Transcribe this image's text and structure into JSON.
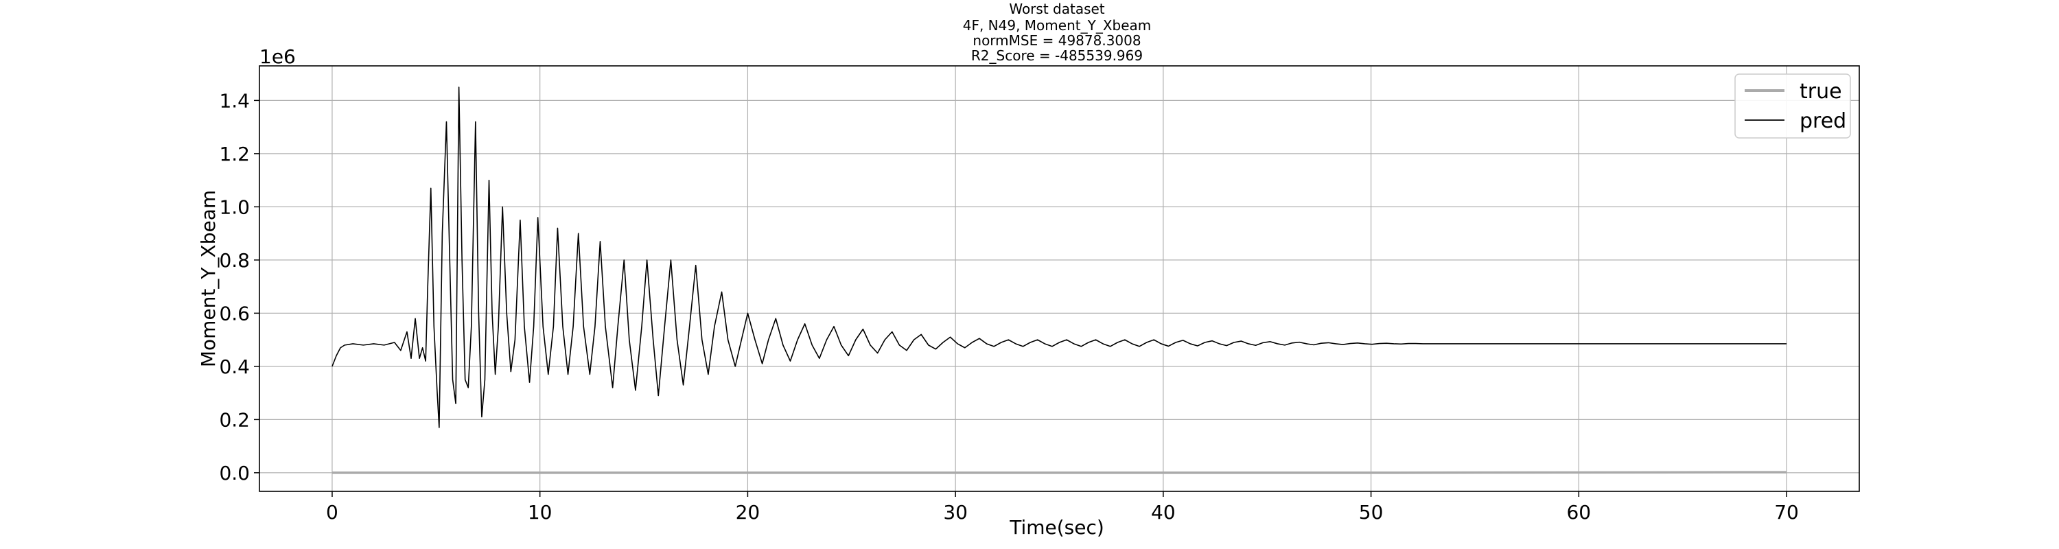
{
  "chart_data": {
    "type": "line",
    "title_lines": [
      "Worst dataset",
      "4F, N49, Moment_Y_Xbeam",
      "normMSE = 49878.3008",
      "R2_Score = -485539.969"
    ],
    "xlabel": "Time(sec)",
    "ylabel": "Moment_Y_Xbeam",
    "y_offset_label": "1e6",
    "xlim": [
      -3.5,
      73.5
    ],
    "ylim": [
      -0.07,
      1.53
    ],
    "xticks": [
      0,
      10,
      20,
      30,
      40,
      50,
      60,
      70
    ],
    "xtick_labels": [
      "0",
      "10",
      "20",
      "30",
      "40",
      "50",
      "60",
      "70"
    ],
    "yticks": [
      0.0,
      0.2,
      0.4,
      0.6,
      0.8,
      1.0,
      1.2,
      1.4
    ],
    "ytick_labels": [
      "0.0",
      "0.2",
      "0.4",
      "0.6",
      "0.8",
      "1.0",
      "1.2",
      "1.4"
    ],
    "grid": true,
    "legend_position": "top-right",
    "series": [
      {
        "name": "true",
        "color": "#aaaaaa",
        "points": [
          [
            0,
            0.0
          ],
          [
            10,
            0.0
          ],
          [
            20,
            0.0
          ],
          [
            30,
            0.0
          ],
          [
            40,
            0.0
          ],
          [
            50,
            0.0
          ],
          [
            60,
            0.001
          ],
          [
            70,
            0.002
          ]
        ]
      },
      {
        "name": "pred",
        "color": "#000000",
        "points": [
          [
            0.0,
            0.4
          ],
          [
            0.2,
            0.44
          ],
          [
            0.4,
            0.47
          ],
          [
            0.6,
            0.48
          ],
          [
            1.0,
            0.485
          ],
          [
            1.5,
            0.48
          ],
          [
            2.0,
            0.485
          ],
          [
            2.5,
            0.48
          ],
          [
            3.0,
            0.49
          ],
          [
            3.3,
            0.46
          ],
          [
            3.6,
            0.53
          ],
          [
            3.8,
            0.43
          ],
          [
            4.0,
            0.58
          ],
          [
            4.2,
            0.43
          ],
          [
            4.35,
            0.47
          ],
          [
            4.5,
            0.42
          ],
          [
            4.6,
            0.7
          ],
          [
            4.75,
            1.07
          ],
          [
            4.9,
            0.55
          ],
          [
            5.05,
            0.31
          ],
          [
            5.15,
            0.17
          ],
          [
            5.3,
            0.9
          ],
          [
            5.5,
            1.32
          ],
          [
            5.65,
            0.83
          ],
          [
            5.8,
            0.35
          ],
          [
            5.95,
            0.26
          ],
          [
            6.1,
            1.45
          ],
          [
            6.25,
            0.8
          ],
          [
            6.4,
            0.35
          ],
          [
            6.55,
            0.32
          ],
          [
            6.7,
            0.55
          ],
          [
            6.9,
            1.32
          ],
          [
            7.05,
            0.6
          ],
          [
            7.2,
            0.21
          ],
          [
            7.35,
            0.35
          ],
          [
            7.55,
            1.1
          ],
          [
            7.7,
            0.6
          ],
          [
            7.85,
            0.37
          ],
          [
            8.0,
            0.55
          ],
          [
            8.2,
            1.0
          ],
          [
            8.4,
            0.6
          ],
          [
            8.6,
            0.38
          ],
          [
            8.8,
            0.5
          ],
          [
            9.05,
            0.95
          ],
          [
            9.25,
            0.55
          ],
          [
            9.5,
            0.34
          ],
          [
            9.7,
            0.55
          ],
          [
            9.9,
            0.96
          ],
          [
            10.15,
            0.55
          ],
          [
            10.4,
            0.37
          ],
          [
            10.65,
            0.55
          ],
          [
            10.85,
            0.92
          ],
          [
            11.1,
            0.55
          ],
          [
            11.35,
            0.37
          ],
          [
            11.6,
            0.55
          ],
          [
            11.85,
            0.9
          ],
          [
            12.1,
            0.55
          ],
          [
            12.4,
            0.37
          ],
          [
            12.65,
            0.55
          ],
          [
            12.9,
            0.87
          ],
          [
            13.15,
            0.55
          ],
          [
            13.5,
            0.32
          ],
          [
            13.75,
            0.55
          ],
          [
            14.05,
            0.8
          ],
          [
            14.3,
            0.5
          ],
          [
            14.6,
            0.31
          ],
          [
            14.9,
            0.55
          ],
          [
            15.15,
            0.8
          ],
          [
            15.45,
            0.5
          ],
          [
            15.7,
            0.29
          ],
          [
            16.0,
            0.55
          ],
          [
            16.3,
            0.8
          ],
          [
            16.6,
            0.5
          ],
          [
            16.9,
            0.33
          ],
          [
            17.2,
            0.55
          ],
          [
            17.5,
            0.78
          ],
          [
            17.8,
            0.5
          ],
          [
            18.1,
            0.37
          ],
          [
            18.4,
            0.55
          ],
          [
            18.75,
            0.68
          ],
          [
            19.05,
            0.5
          ],
          [
            19.4,
            0.4
          ],
          [
            19.7,
            0.5
          ],
          [
            20.0,
            0.6
          ],
          [
            20.35,
            0.5
          ],
          [
            20.7,
            0.41
          ],
          [
            21.0,
            0.5
          ],
          [
            21.35,
            0.58
          ],
          [
            21.7,
            0.48
          ],
          [
            22.05,
            0.42
          ],
          [
            22.4,
            0.5
          ],
          [
            22.75,
            0.56
          ],
          [
            23.1,
            0.48
          ],
          [
            23.45,
            0.43
          ],
          [
            23.8,
            0.5
          ],
          [
            24.15,
            0.55
          ],
          [
            24.5,
            0.48
          ],
          [
            24.85,
            0.44
          ],
          [
            25.2,
            0.5
          ],
          [
            25.55,
            0.54
          ],
          [
            25.9,
            0.48
          ],
          [
            26.25,
            0.45
          ],
          [
            26.6,
            0.5
          ],
          [
            26.95,
            0.53
          ],
          [
            27.3,
            0.48
          ],
          [
            27.65,
            0.46
          ],
          [
            28.0,
            0.5
          ],
          [
            28.35,
            0.52
          ],
          [
            28.7,
            0.48
          ],
          [
            29.05,
            0.465
          ],
          [
            29.4,
            0.49
          ],
          [
            29.75,
            0.51
          ],
          [
            30.1,
            0.485
          ],
          [
            30.45,
            0.47
          ],
          [
            30.8,
            0.49
          ],
          [
            31.15,
            0.505
          ],
          [
            31.5,
            0.485
          ],
          [
            31.85,
            0.475
          ],
          [
            32.2,
            0.49
          ],
          [
            32.55,
            0.5
          ],
          [
            32.9,
            0.485
          ],
          [
            33.25,
            0.475
          ],
          [
            33.6,
            0.49
          ],
          [
            33.95,
            0.5
          ],
          [
            34.3,
            0.485
          ],
          [
            34.65,
            0.475
          ],
          [
            35.0,
            0.49
          ],
          [
            35.35,
            0.5
          ],
          [
            35.7,
            0.485
          ],
          [
            36.05,
            0.475
          ],
          [
            36.4,
            0.49
          ],
          [
            36.75,
            0.5
          ],
          [
            37.1,
            0.485
          ],
          [
            37.45,
            0.475
          ],
          [
            37.8,
            0.49
          ],
          [
            38.15,
            0.5
          ],
          [
            38.5,
            0.485
          ],
          [
            38.85,
            0.475
          ],
          [
            39.2,
            0.49
          ],
          [
            39.55,
            0.5
          ],
          [
            39.9,
            0.485
          ],
          [
            40.25,
            0.476
          ],
          [
            40.6,
            0.49
          ],
          [
            40.95,
            0.498
          ],
          [
            41.3,
            0.485
          ],
          [
            41.65,
            0.477
          ],
          [
            42.0,
            0.49
          ],
          [
            42.35,
            0.496
          ],
          [
            42.7,
            0.485
          ],
          [
            43.05,
            0.478
          ],
          [
            43.4,
            0.49
          ],
          [
            43.75,
            0.495
          ],
          [
            44.1,
            0.485
          ],
          [
            44.45,
            0.479
          ],
          [
            44.8,
            0.489
          ],
          [
            45.15,
            0.493
          ],
          [
            45.5,
            0.485
          ],
          [
            45.85,
            0.48
          ],
          [
            46.2,
            0.488
          ],
          [
            46.55,
            0.491
          ],
          [
            46.9,
            0.485
          ],
          [
            47.25,
            0.481
          ],
          [
            47.6,
            0.487
          ],
          [
            47.95,
            0.489
          ],
          [
            48.3,
            0.485
          ],
          [
            48.65,
            0.482
          ],
          [
            49.0,
            0.486
          ],
          [
            49.35,
            0.488
          ],
          [
            49.7,
            0.485
          ],
          [
            50.05,
            0.483
          ],
          [
            50.4,
            0.486
          ],
          [
            50.75,
            0.487
          ],
          [
            51.1,
            0.485
          ],
          [
            51.45,
            0.484
          ],
          [
            51.8,
            0.486
          ],
          [
            52.15,
            0.486
          ],
          [
            52.5,
            0.485
          ],
          [
            53.0,
            0.485
          ],
          [
            55.0,
            0.485
          ],
          [
            60.0,
            0.485
          ],
          [
            65.0,
            0.485
          ],
          [
            70.0,
            0.485
          ]
        ]
      }
    ]
  }
}
